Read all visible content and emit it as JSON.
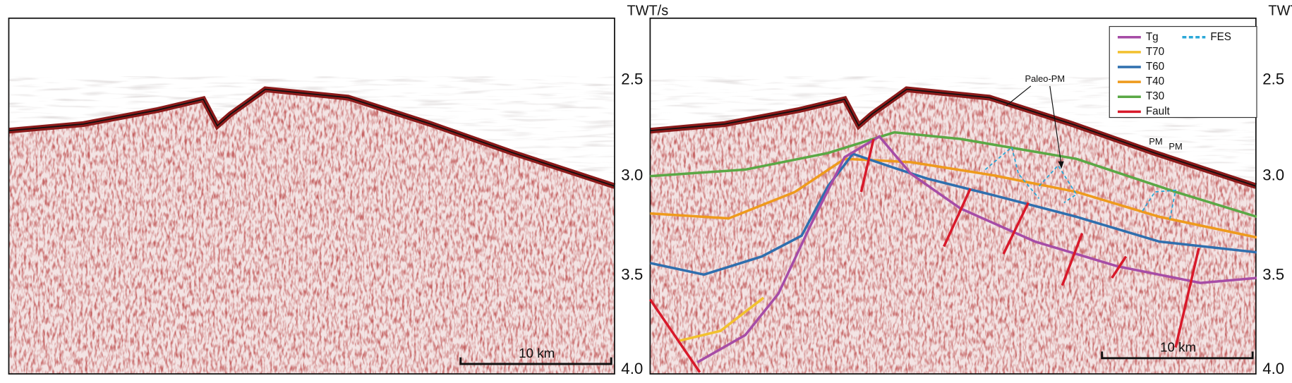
{
  "panels": [
    {
      "axis_title": "TWT/s",
      "ticks": [
        "2.5",
        "3.0",
        "3.5",
        "4.0"
      ],
      "scale_bar": "10 km"
    },
    {
      "axis_title": "TWT/s",
      "ticks": [
        "2.5",
        "3.0",
        "3.5",
        "4.0"
      ],
      "scale_bar": "10 km"
    }
  ],
  "legend": [
    {
      "name": "Tg",
      "color": "#a64ca6"
    },
    {
      "name": "T70",
      "color": "#f2c12e"
    },
    {
      "name": "T60",
      "color": "#2f6fae"
    },
    {
      "name": "T40",
      "color": "#ee9a1c"
    },
    {
      "name": "T30",
      "color": "#5aa845"
    },
    {
      "name": "Fault",
      "color": "#d8192a"
    },
    {
      "name": "FES",
      "color": "#2aa8d8"
    }
  ],
  "annotations": [
    "Paleo-PM",
    "PM",
    "PM"
  ]
}
